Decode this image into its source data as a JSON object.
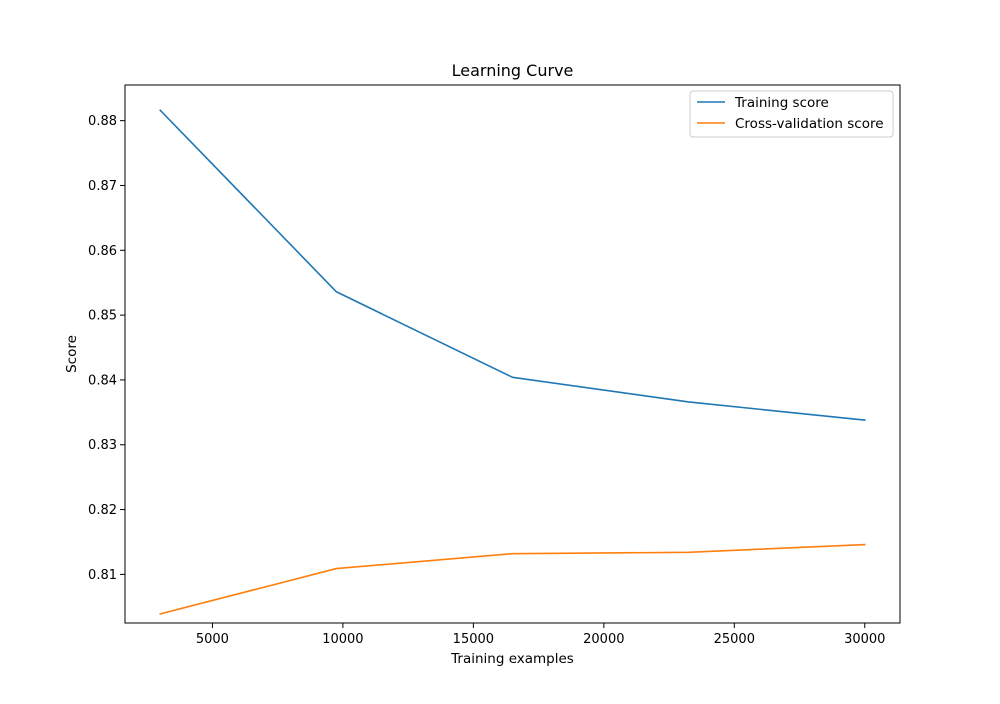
{
  "chart_data": {
    "type": "line",
    "title": "Learning Curve",
    "xlabel": "Training examples",
    "ylabel": "Score",
    "xlim": [
      1650,
      31350
    ],
    "ylim": [
      0.8025,
      0.8855
    ],
    "xticks": [
      5000,
      10000,
      15000,
      20000,
      25000,
      30000
    ],
    "yticks": [
      0.81,
      0.82,
      0.83,
      0.84,
      0.85,
      0.86,
      0.87,
      0.88
    ],
    "x": [
      3000,
      9750,
      16500,
      23250,
      30000
    ],
    "series": [
      {
        "name": "Training score",
        "color": "#1f77b4",
        "values": [
          0.8816,
          0.8536,
          0.8404,
          0.8366,
          0.8338
        ]
      },
      {
        "name": "Cross-validation score",
        "color": "#ff7f0e",
        "values": [
          0.8039,
          0.8109,
          0.8132,
          0.8134,
          0.8146
        ]
      }
    ],
    "grid": false,
    "legend_position": "top-right"
  }
}
